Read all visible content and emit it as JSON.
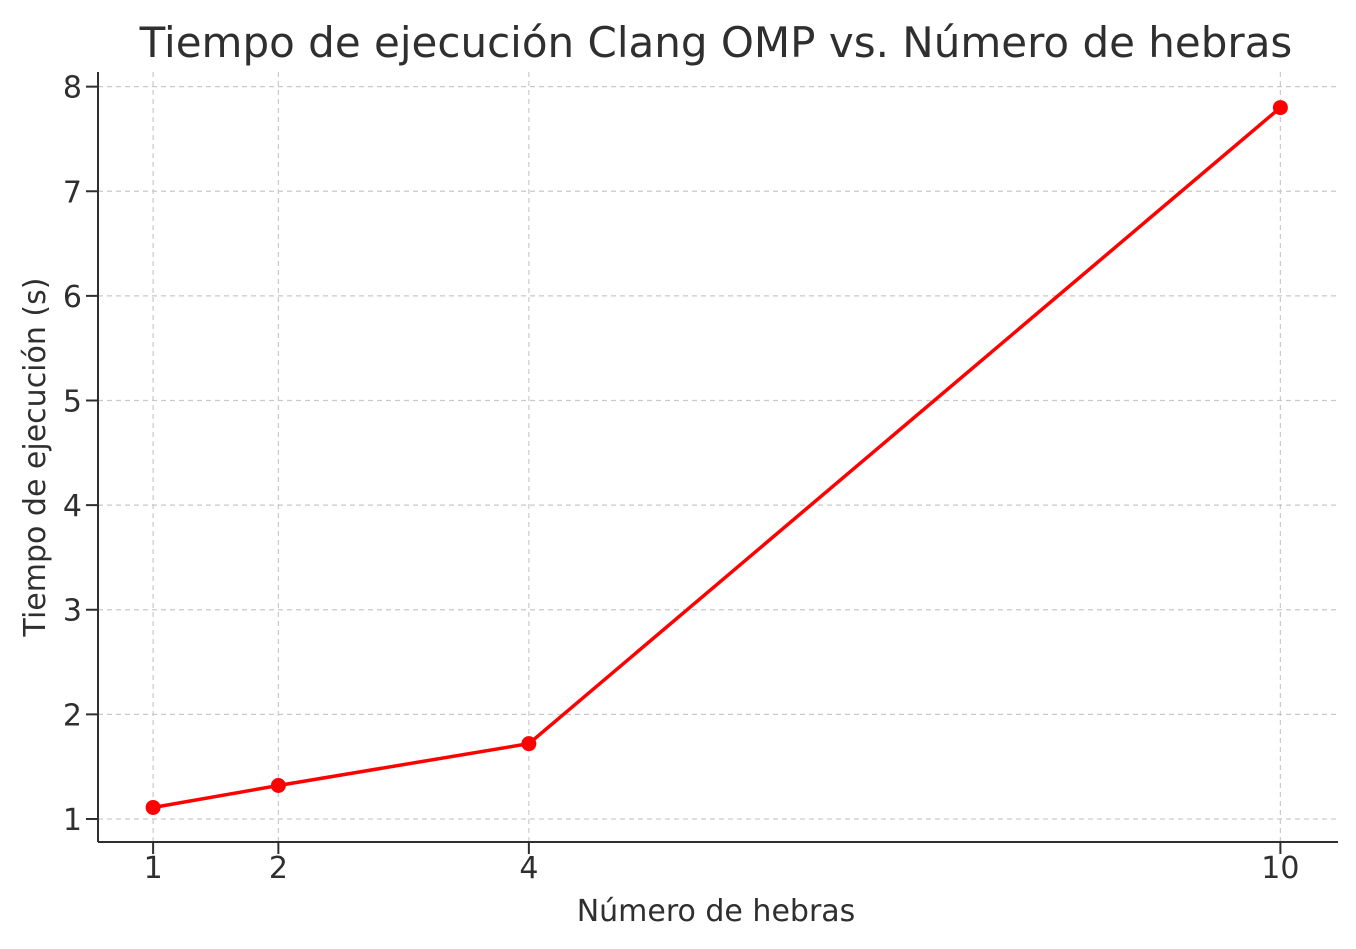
{
  "chart_data": {
    "type": "line",
    "title": "Tiempo de ejecución Clang OMP vs. Número de hebras",
    "xlabel": "Número de hebras",
    "ylabel": "Tiempo de ejecución (s)",
    "x": [
      1,
      2,
      4,
      10
    ],
    "xticks": [
      "1",
      "2",
      "4",
      "10"
    ],
    "yticks": [
      "1",
      "2",
      "3",
      "4",
      "5",
      "6",
      "7",
      "8"
    ],
    "xlim": [
      0.56,
      10.46
    ],
    "ylim": [
      0.78,
      8.14
    ],
    "grid": true,
    "series": [
      {
        "values": [
          1.11,
          1.32,
          1.72,
          7.8
        ],
        "color": "#ff0000",
        "marker": "circle"
      }
    ]
  }
}
